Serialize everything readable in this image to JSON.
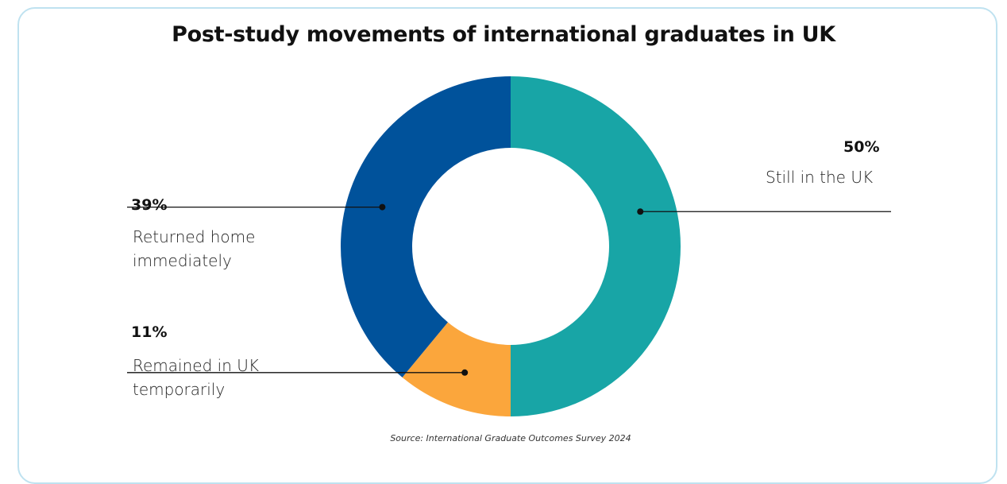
{
  "title": "Post-study movements of international graduates in UK",
  "source": "Source: International Graduate Outcomes Survey 2024",
  "chart_data": {
    "type": "pie",
    "title": "Post-study movements of international graduates in UK",
    "donut": true,
    "categories": [
      "Still in the UK",
      "Remained in UK temporarily",
      "Returned home immediately"
    ],
    "values": [
      50,
      11,
      39
    ],
    "labels": [
      "50%",
      "11%",
      "39%"
    ],
    "colors": [
      "#18a5a6",
      "#fba63c",
      "#00529b"
    ],
    "label_lines": {
      "still_uk": [
        "Still in the UK"
      ],
      "remained_temp": [
        "Remained in UK",
        "temporarily"
      ],
      "returned_home": [
        "Returned home",
        "immediately"
      ]
    }
  }
}
